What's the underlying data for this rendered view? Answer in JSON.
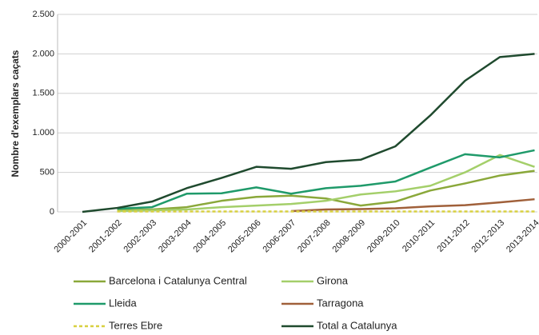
{
  "chart_data": {
    "type": "line",
    "y_label": "Nombre d'exemplars caçats",
    "categories": [
      "2000-2001",
      "2001-2002",
      "2002-2003",
      "2003-2004",
      "2004-2005",
      "2005-2006",
      "2006-2007",
      "2007-2008",
      "2008-2009",
      "2009-2010",
      "2010-2011",
      "2011-2012",
      "2012-2013",
      "2013-2014"
    ],
    "series": [
      {
        "name": "Barcelona i Catalunya Central",
        "color": "#8aa83a",
        "values": [
          null,
          20,
          30,
          60,
          140,
          190,
          205,
          170,
          80,
          130,
          270,
          360,
          460,
          520
        ]
      },
      {
        "name": "Girona",
        "color": "#a4cf6a",
        "values": [
          null,
          10,
          20,
          30,
          60,
          80,
          100,
          140,
          220,
          260,
          330,
          500,
          720,
          570
        ]
      },
      {
        "name": "Lleida",
        "color": "#1f9a6a",
        "values": [
          null,
          40,
          60,
          230,
          235,
          310,
          230,
          300,
          330,
          385,
          560,
          730,
          690,
          780
        ]
      },
      {
        "name": "Tarragona",
        "color": "#a0603a",
        "values": [
          null,
          null,
          null,
          null,
          null,
          null,
          10,
          30,
          35,
          45,
          70,
          85,
          120,
          160
        ]
      },
      {
        "name": "Terres Ebre",
        "color": "#d8d040",
        "dashed": true,
        "values": [
          null,
          5,
          5,
          5,
          5,
          5,
          5,
          5,
          5,
          5,
          5,
          5,
          5,
          5
        ]
      },
      {
        "name": "Total a Catalunya",
        "color": "#1f4a2e",
        "values": [
          0,
          50,
          130,
          300,
          430,
          570,
          545,
          630,
          660,
          830,
          1220,
          1660,
          1960,
          2000
        ]
      }
    ],
    "ylim": [
      0,
      2500
    ],
    "yticks": [
      0,
      500,
      {
        "value": 1000,
        "label": "1.000"
      },
      {
        "value": 1500,
        "label": "1.500"
      },
      {
        "value": 2000,
        "label": "2.000"
      },
      {
        "value": 2500,
        "label": "2.500"
      }
    ],
    "grid": true,
    "legend": "bottom"
  }
}
